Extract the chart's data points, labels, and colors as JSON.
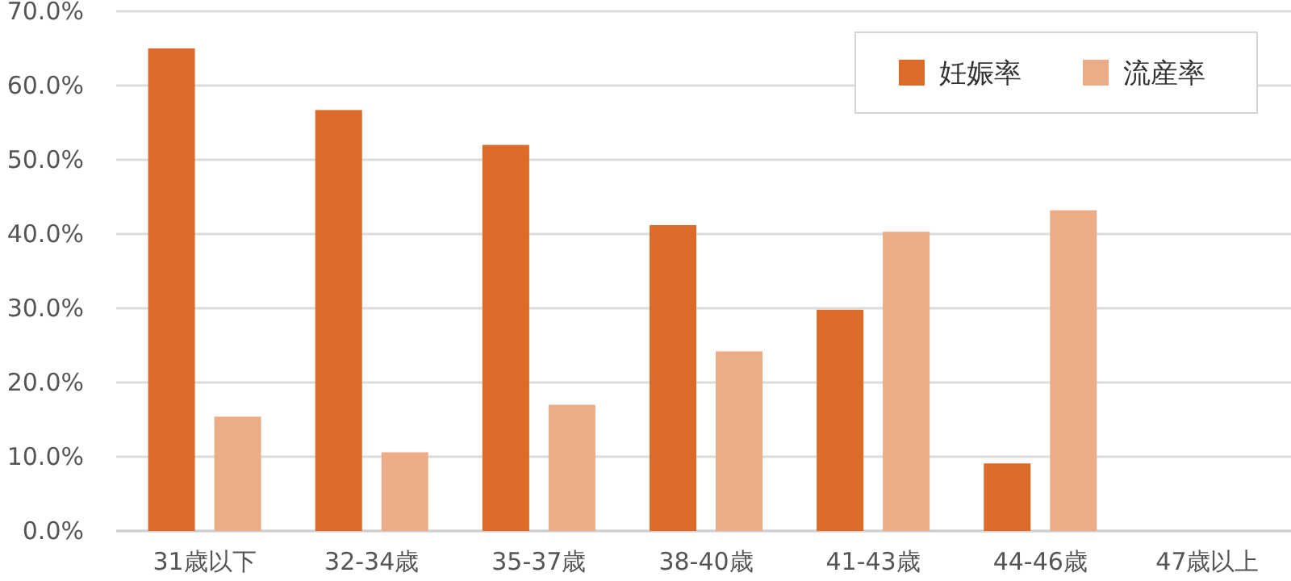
{
  "chart_data": {
    "type": "bar",
    "categories": [
      "31歳以下",
      "32-34歳",
      "35-37歳",
      "38-40歳",
      "41-43歳",
      "44-46歳",
      "47歳以上"
    ],
    "series": [
      {
        "name": "妊娠率",
        "color": "#dc6b2a",
        "values": [
          65.0,
          56.7,
          52.0,
          41.2,
          29.8,
          9.1,
          null
        ]
      },
      {
        "name": "流産率",
        "color": "#edac88",
        "values": [
          15.4,
          10.6,
          17.0,
          24.2,
          40.3,
          43.2,
          null
        ]
      }
    ],
    "ylim": [
      0,
      70
    ],
    "yticks": [
      {
        "value": 0,
        "label": "0.0%"
      },
      {
        "value": 10,
        "label": "10.0%"
      },
      {
        "value": 20,
        "label": "20.0%"
      },
      {
        "value": 30,
        "label": "30.0%"
      },
      {
        "value": 40,
        "label": "40.0%"
      },
      {
        "value": 50,
        "label": "50.0%"
      },
      {
        "value": 60,
        "label": "60.0%"
      },
      {
        "value": 70,
        "label": "70.0%"
      }
    ],
    "grid": "y",
    "legend": "top right"
  }
}
